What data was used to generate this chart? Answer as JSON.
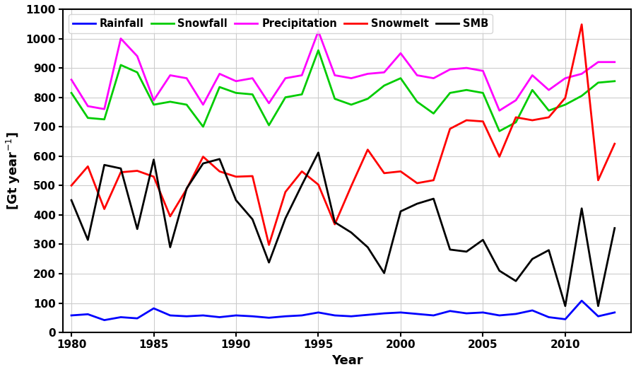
{
  "years": [
    1980,
    1981,
    1982,
    1983,
    1984,
    1985,
    1986,
    1987,
    1988,
    1989,
    1990,
    1991,
    1992,
    1993,
    1994,
    1995,
    1996,
    1997,
    1998,
    1999,
    2000,
    2001,
    2002,
    2003,
    2004,
    2005,
    2006,
    2007,
    2008,
    2009,
    2010,
    2011,
    2012,
    2013
  ],
  "rainfall": [
    58,
    62,
    42,
    52,
    48,
    82,
    58,
    55,
    58,
    52,
    58,
    55,
    50,
    55,
    58,
    68,
    58,
    55,
    60,
    65,
    68,
    63,
    58,
    73,
    65,
    68,
    58,
    63,
    75,
    52,
    45,
    108,
    55,
    68
  ],
  "snowfall": [
    815,
    730,
    725,
    910,
    885,
    775,
    785,
    775,
    700,
    835,
    815,
    810,
    705,
    800,
    810,
    960,
    795,
    775,
    795,
    840,
    865,
    785,
    745,
    815,
    825,
    815,
    685,
    715,
    825,
    755,
    775,
    805,
    850,
    855
  ],
  "precipitation": [
    860,
    770,
    760,
    1000,
    940,
    790,
    875,
    865,
    775,
    880,
    855,
    865,
    780,
    865,
    875,
    1025,
    875,
    865,
    880,
    885,
    950,
    875,
    865,
    895,
    900,
    890,
    755,
    790,
    875,
    825,
    865,
    880,
    920,
    920
  ],
  "snowmelt": [
    500,
    565,
    420,
    545,
    550,
    530,
    395,
    488,
    598,
    548,
    530,
    532,
    298,
    478,
    548,
    503,
    368,
    498,
    622,
    542,
    548,
    508,
    518,
    693,
    722,
    718,
    598,
    732,
    722,
    732,
    798,
    1048,
    518,
    642
  ],
  "smb": [
    450,
    315,
    570,
    558,
    352,
    588,
    290,
    490,
    575,
    590,
    450,
    385,
    238,
    388,
    502,
    612,
    375,
    340,
    290,
    202,
    412,
    438,
    455,
    282,
    275,
    315,
    210,
    175,
    250,
    280,
    90,
    422,
    90,
    355
  ],
  "colors": {
    "rainfall": "#0000ff",
    "snowfall": "#00cc00",
    "precipitation": "#ff00ff",
    "snowmelt": "#ff0000",
    "smb": "#000000"
  },
  "xlabel": "Year",
  "ylabel": "[Gt year$^{-1}$]",
  "ylim": [
    0,
    1100
  ],
  "xlim_min": 1979.5,
  "xlim_max": 2014.0,
  "yticks": [
    0,
    100,
    200,
    300,
    400,
    500,
    600,
    700,
    800,
    900,
    1000,
    1100
  ],
  "xticks": [
    1980,
    1985,
    1990,
    1995,
    2000,
    2005,
    2010
  ],
  "linewidth": 2.0,
  "legend_labels": [
    "Rainfall",
    "Snowfall",
    "Precipitation",
    "Snowmelt",
    "SMB"
  ],
  "background_color": "#ffffff",
  "grid_color": "#cccccc"
}
